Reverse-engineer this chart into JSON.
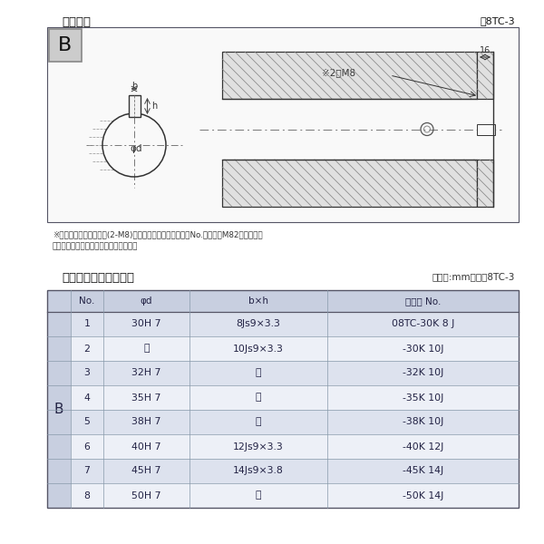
{
  "bg_color": "#ffffff",
  "top_title": "軸穴形状",
  "top_fig_no": "図8TC-3",
  "diagram_B": "B",
  "note_M8": "※2－M8",
  "dim_16": "16",
  "dim_b": "b",
  "dim_h": "h",
  "dim_phi": "φd",
  "note1": "※セットボルト用タップ(2-M8)が必要な場合は右記コードNo.の末尾にM82を付ける。",
  "note2": "（セットボルトは付属されています。）",
  "table_title": "軸穴形状コード一覧表",
  "table_unit": "（単位:mm）　表8TC-3",
  "col_headers": [
    "No.",
    "φd",
    "b×h",
    "コード No."
  ],
  "col_B": "B",
  "rows": [
    [
      "1",
      "30H 7",
      "8Js9×3.3",
      "08TC-30K 8 J"
    ],
    [
      "2",
      "〃",
      "10Js9×3.3",
      "-30K 10J"
    ],
    [
      "3",
      "32H 7",
      "〃",
      "-32K 10J"
    ],
    [
      "4",
      "35H 7",
      "〃",
      "-35K 10J"
    ],
    [
      "5",
      "38H 7",
      "〃",
      "-38K 10J"
    ],
    [
      "6",
      "40H 7",
      "12Js9×3.3",
      "-40K 12J"
    ],
    [
      "7",
      "45H 7",
      "14Js9×3.8",
      "-45K 14J"
    ],
    [
      "8",
      "50H 7",
      "〃",
      "-50K 14J"
    ]
  ],
  "hdr_bg": "#c8cfe0",
  "row_bg_a": "#dde2ee",
  "row_bg_b": "#edf0f7",
  "b_col_bg": "#c8cfe0",
  "text_dark": "#222244",
  "line_color": "#555566",
  "grid_color": "#8899aa"
}
